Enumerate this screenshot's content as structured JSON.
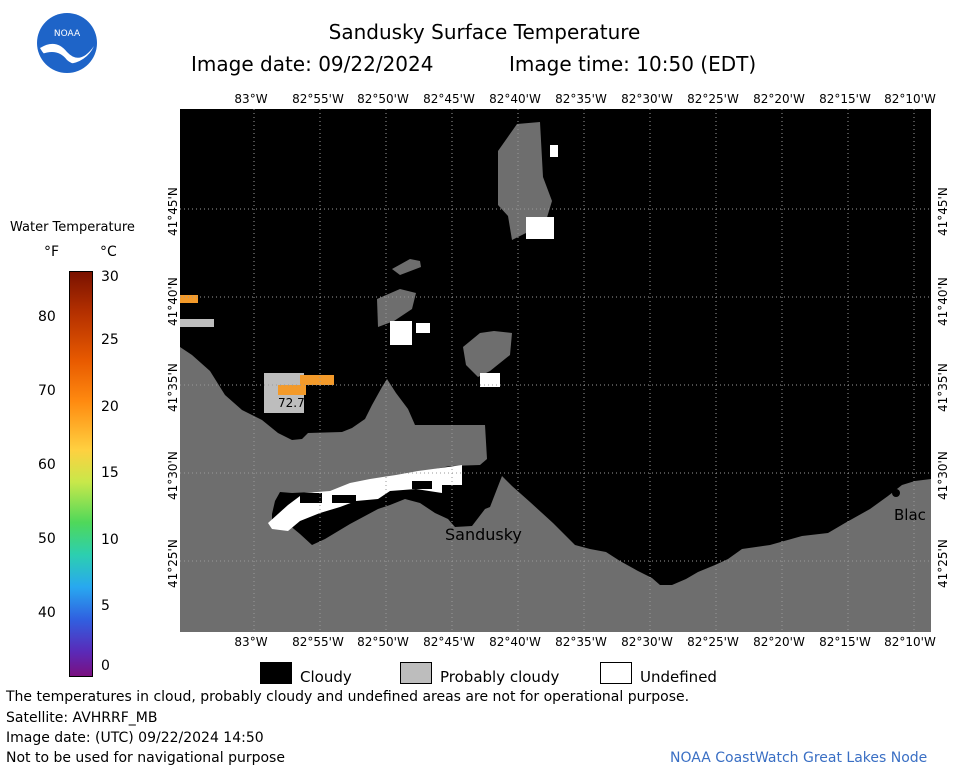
{
  "title": "Sandusky Surface Temperature",
  "image_date": "Image date: 09/22/2024",
  "image_time": "Image time: 10:50 (EDT)",
  "logo_text": "NOAA",
  "longitude_labels": [
    "83°W",
    "82°55'W",
    "82°50'W",
    "82°45'W",
    "82°40'W",
    "82°35'W",
    "82°30'W",
    "82°25'W",
    "82°20'W",
    "82°15'W",
    "82°10'W"
  ],
  "latitude_labels": [
    "41°45'N",
    "41°40'N",
    "41°35'N",
    "41°30'N",
    "41°25'N"
  ],
  "colorbar": {
    "title": "Water Temperature",
    "unit_f": "°F",
    "unit_c": "°C",
    "f_ticks": [
      "80",
      "70",
      "60",
      "50",
      "40"
    ],
    "c_ticks": [
      "30",
      "25",
      "20",
      "15",
      "10",
      "5",
      "0"
    ],
    "range_c": [
      0,
      30
    ]
  },
  "map": {
    "place_labels": [
      "Sandusky",
      "Blac"
    ],
    "temperature_readout": "72.7",
    "colors": {
      "land": "#6e6e6e",
      "cloudy": "#000000",
      "probably_cloudy": "#bdbdbd",
      "undefined": "#ffffff",
      "warm_water": "#f39a2a"
    }
  },
  "legend": {
    "cloudy": "Cloudy",
    "probably_cloudy": "Probably cloudy",
    "undefined": "Undefined"
  },
  "footer": {
    "note": "The temperatures in cloud, probably cloudy and undefined areas are not for operational purpose.",
    "satellite": "Satellite: AVHRRF_MB",
    "utc_date": "Image date: (UTC) 09/22/2024  14:50",
    "nav": "Not to be used for navigational purpose",
    "credit": "NOAA CoastWatch Great Lakes Node"
  }
}
